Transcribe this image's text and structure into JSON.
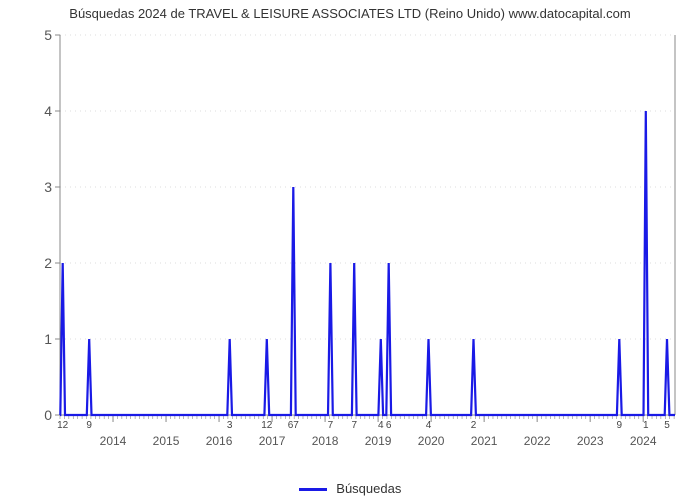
{
  "chart": {
    "type": "line",
    "title": "Búsquedas 2024 de TRAVEL & LEISURE ASSOCIATES LTD (Reino Unido) www.datocapital.com",
    "legend_label": "Búsquedas",
    "line_color": "#1a1ae6",
    "line_width": 2.2,
    "background_color": "#ffffff",
    "grid_color": "#dddddd",
    "axis_color": "#888888",
    "tick_color": "#888888",
    "label_color": "#555555",
    "fontsize_title": 13,
    "fontsize_ticks": 12,
    "fontsize_spike": 10,
    "y": {
      "min": 0,
      "max": 5,
      "ticks": [
        0,
        1,
        2,
        3,
        4,
        5
      ]
    },
    "x": {
      "year_min": 2013.0,
      "year_max": 2024.6,
      "year_ticks": [
        2014,
        2015,
        2016,
        2017,
        2018,
        2019,
        2020,
        2021,
        2022,
        2023,
        2024
      ]
    },
    "spikes": [
      {
        "t": 2013.05,
        "v": 2,
        "label": "12",
        "label_below": true
      },
      {
        "t": 2013.55,
        "v": 1,
        "label": "9",
        "label_below": true
      },
      {
        "t": 2016.2,
        "v": 1,
        "label": "3",
        "label_below": true
      },
      {
        "t": 2016.9,
        "v": 1,
        "label": "12",
        "label_below": true
      },
      {
        "t": 2017.4,
        "v": 3,
        "label": "67",
        "label_below": true
      },
      {
        "t": 2018.1,
        "v": 2,
        "label": "7",
        "label_below": true
      },
      {
        "t": 2018.55,
        "v": 2,
        "label": "7",
        "label_below": true
      },
      {
        "t": 2019.05,
        "v": 1,
        "label": "4",
        "label_below": true
      },
      {
        "t": 2019.2,
        "v": 2,
        "label": "6",
        "label_below": true
      },
      {
        "t": 2019.95,
        "v": 1,
        "label": "4",
        "label_below": true
      },
      {
        "t": 2020.8,
        "v": 1,
        "label": "2",
        "label_below": true
      },
      {
        "t": 2023.55,
        "v": 1,
        "label": "9",
        "label_below": true
      },
      {
        "t": 2024.05,
        "v": 4,
        "label": "1",
        "label_below": true
      },
      {
        "t": 2024.45,
        "v": 1,
        "label": "5",
        "label_below": true
      }
    ]
  }
}
